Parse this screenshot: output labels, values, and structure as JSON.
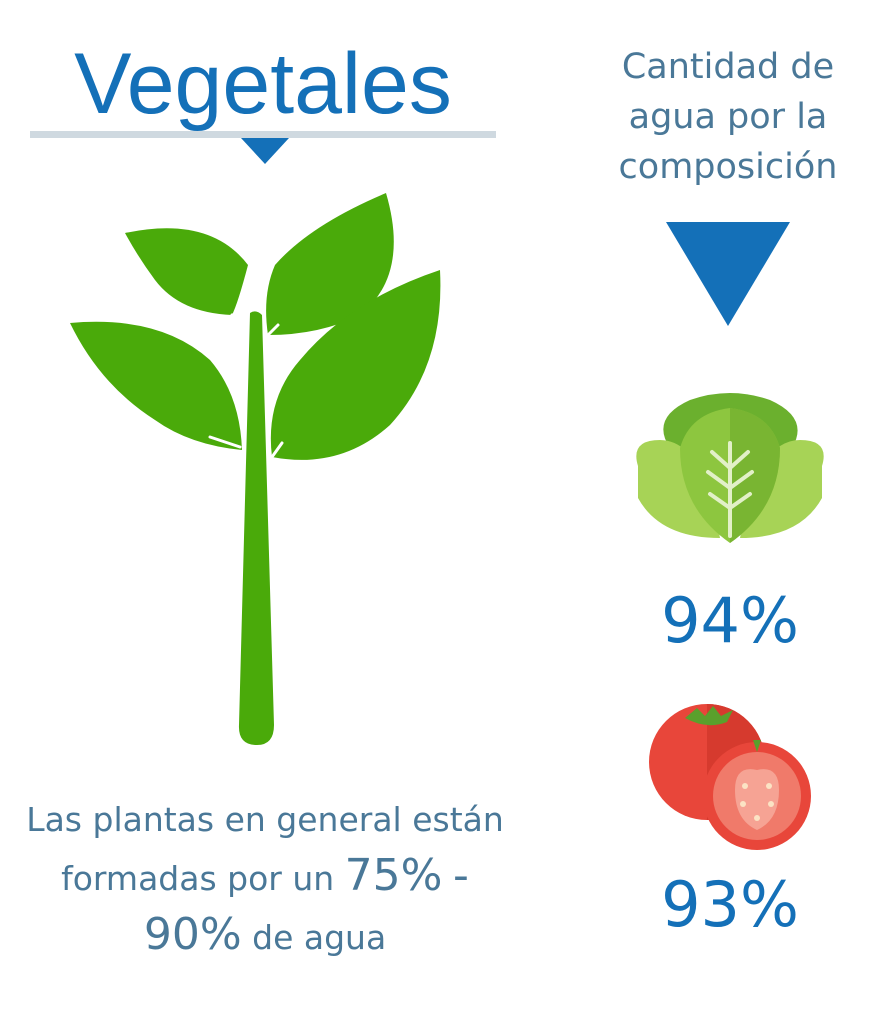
{
  "title": "Vegetales",
  "side_heading": {
    "line1": "Cantidad de",
    "line2": "agua por la",
    "line3": "composición"
  },
  "items": [
    {
      "icon": "lettuce-icon",
      "percent": "94%"
    },
    {
      "icon": "tomato-icon",
      "percent": "93%"
    }
  ],
  "caption": {
    "part1": "Las plantas en general están",
    "part2": "formadas por un",
    "range_low": "75%",
    "dash": "-",
    "range_high": "90%",
    "part3": "de agua"
  },
  "colors": {
    "accent_blue": "#1470b8",
    "text_blue": "#4a7898",
    "rule_gray": "#cfd9e0",
    "plant_green": "#4aaa0a",
    "lettuce_green": "#8dc63f",
    "tomato_red": "#e8463a"
  }
}
